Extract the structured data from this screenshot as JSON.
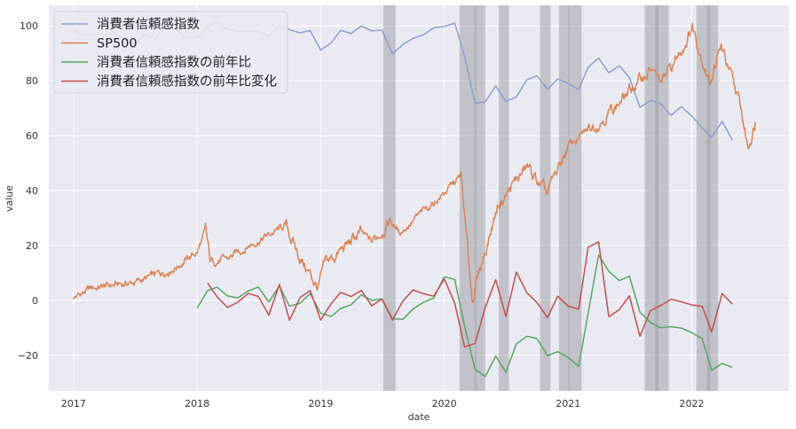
{
  "chart_data": {
    "type": "line",
    "xlabel": "date",
    "ylabel": "value",
    "xlim": [
      "2016-10-20",
      "2022-10-15"
    ],
    "ylim": [
      -33,
      107.5
    ],
    "x_ticks": [
      "2017",
      "2018",
      "2019",
      "2020",
      "2021",
      "2022"
    ],
    "y_ticks": [
      -20,
      0,
      20,
      40,
      60,
      80,
      100
    ],
    "grid": true,
    "legend_position": "top-left",
    "colors": {
      "background": "#eaeaf2",
      "grid": "#ffffff",
      "shade": "#a0a0a8"
    },
    "shaded_regions": [
      [
        "2019-07-05",
        "2019-08-10"
      ],
      [
        "2020-02-15",
        "2020-04-05"
      ],
      [
        "2020-04-01",
        "2020-05-01"
      ],
      [
        "2020-06-10",
        "2020-07-10"
      ],
      [
        "2020-10-10",
        "2020-11-10"
      ],
      [
        "2020-12-05",
        "2021-01-05"
      ],
      [
        "2021-01-01",
        "2021-02-10"
      ],
      [
        "2021-08-15",
        "2021-09-25"
      ],
      [
        "2021-09-15",
        "2021-10-25"
      ],
      [
        "2022-01-15",
        "2022-02-25"
      ],
      [
        "2022-02-15",
        "2022-03-20"
      ]
    ],
    "series": [
      {
        "name": "消費者信頼感指数",
        "color": "#8da0cb",
        "width": 1.5,
        "points": [
          [
            "2017-01-01",
            98.5
          ],
          [
            "2017-02-01",
            96.3
          ],
          [
            "2017-03-01",
            96.9
          ],
          [
            "2017-04-01",
            97.0
          ],
          [
            "2017-05-01",
            97.1
          ],
          [
            "2017-06-01",
            95.0
          ],
          [
            "2017-07-01",
            93.4
          ],
          [
            "2017-08-01",
            96.8
          ],
          [
            "2017-09-01",
            95.1
          ],
          [
            "2017-10-01",
            100.7
          ],
          [
            "2017-11-01",
            98.5
          ],
          [
            "2017-12-01",
            95.9
          ],
          [
            "2018-01-01",
            95.7
          ],
          [
            "2018-02-01",
            99.7
          ],
          [
            "2018-03-01",
            101.4
          ],
          [
            "2018-04-01",
            98.8
          ],
          [
            "2018-05-01",
            98.0
          ],
          [
            "2018-06-01",
            98.2
          ],
          [
            "2018-07-01",
            97.9
          ],
          [
            "2018-08-01",
            96.2
          ],
          [
            "2018-09-01",
            100.1
          ],
          [
            "2018-10-01",
            98.6
          ],
          [
            "2018-11-01",
            97.5
          ],
          [
            "2018-12-01",
            98.3
          ],
          [
            "2019-01-01",
            91.2
          ],
          [
            "2019-02-01",
            93.8
          ],
          [
            "2019-03-01",
            98.4
          ],
          [
            "2019-04-01",
            97.2
          ],
          [
            "2019-05-01",
            100.0
          ],
          [
            "2019-06-01",
            98.2
          ],
          [
            "2019-07-01",
            98.4
          ],
          [
            "2019-08-01",
            89.8
          ],
          [
            "2019-09-01",
            93.2
          ],
          [
            "2019-10-01",
            95.5
          ],
          [
            "2019-11-01",
            96.8
          ],
          [
            "2019-12-01",
            99.3
          ],
          [
            "2020-01-01",
            99.8
          ],
          [
            "2020-02-01",
            101.0
          ],
          [
            "2020-03-01",
            89.1
          ],
          [
            "2020-04-01",
            71.8
          ],
          [
            "2020-05-01",
            72.3
          ],
          [
            "2020-06-01",
            78.1
          ],
          [
            "2020-07-01",
            72.5
          ],
          [
            "2020-08-01",
            74.1
          ],
          [
            "2020-09-01",
            80.4
          ],
          [
            "2020-10-01",
            81.8
          ],
          [
            "2020-11-01",
            76.9
          ],
          [
            "2020-12-01",
            80.7
          ],
          [
            "2021-01-01",
            79.0
          ],
          [
            "2021-02-01",
            76.8
          ],
          [
            "2021-03-01",
            84.9
          ],
          [
            "2021-04-01",
            88.3
          ],
          [
            "2021-05-01",
            82.9
          ],
          [
            "2021-06-01",
            85.5
          ],
          [
            "2021-07-01",
            81.2
          ],
          [
            "2021-08-01",
            70.3
          ],
          [
            "2021-09-01",
            72.8
          ],
          [
            "2021-10-01",
            71.7
          ],
          [
            "2021-11-01",
            67.4
          ],
          [
            "2021-12-01",
            70.6
          ],
          [
            "2022-01-01",
            67.2
          ],
          [
            "2022-02-01",
            62.8
          ],
          [
            "2022-03-01",
            59.4
          ],
          [
            "2022-04-01",
            65.2
          ],
          [
            "2022-05-01",
            58.4
          ]
        ]
      },
      {
        "name": "SP500",
        "color": "#dd8452",
        "width": 1.5,
        "points": [
          [
            "2017-01-01",
            1.0
          ],
          [
            "2017-03-01",
            4.5
          ],
          [
            "2017-05-01",
            5.5
          ],
          [
            "2017-07-01",
            6.5
          ],
          [
            "2017-09-01",
            9.0
          ],
          [
            "2017-11-01",
            12.5
          ],
          [
            "2018-01-01",
            17.5
          ],
          [
            "2018-01-26",
            25.0
          ],
          [
            "2018-02-08",
            14.0
          ],
          [
            "2018-04-01",
            15.0
          ],
          [
            "2018-06-01",
            20.0
          ],
          [
            "2018-09-20",
            27.0
          ],
          [
            "2018-10-25",
            17.0
          ],
          [
            "2018-12-24",
            4.5
          ],
          [
            "2019-01-15",
            13.0
          ],
          [
            "2019-04-30",
            24.5
          ],
          [
            "2019-06-01",
            21.0
          ],
          [
            "2019-07-25",
            29.5
          ],
          [
            "2019-08-20",
            24.5
          ],
          [
            "2019-10-30",
            32.0
          ],
          [
            "2019-12-31",
            39.0
          ],
          [
            "2020-02-19",
            45.0
          ],
          [
            "2020-03-23",
            0.5
          ],
          [
            "2020-06-08",
            35.0
          ],
          [
            "2020-09-02",
            48.5
          ],
          [
            "2020-10-30",
            38.0
          ],
          [
            "2020-12-31",
            56.0
          ],
          [
            "2021-03-01",
            62.0
          ],
          [
            "2021-06-01",
            72.0
          ],
          [
            "2021-09-02",
            84.5
          ],
          [
            "2021-10-05",
            79.0
          ],
          [
            "2021-12-01",
            91.0
          ],
          [
            "2022-01-03",
            100.0
          ],
          [
            "2022-02-23",
            80.0
          ],
          [
            "2022-03-29",
            92.0
          ],
          [
            "2022-05-20",
            72.5
          ],
          [
            "2022-06-16",
            56.0
          ],
          [
            "2022-07-08",
            65.0
          ]
        ]
      },
      {
        "name": "消費者信頼感指数の前年比",
        "color": "#55a868",
        "width": 1.5,
        "points": [
          [
            "2018-01-01",
            -2.8
          ],
          [
            "2018-02-01",
            3.5
          ],
          [
            "2018-03-01",
            4.8
          ],
          [
            "2018-04-01",
            1.6
          ],
          [
            "2018-05-01",
            0.9
          ],
          [
            "2018-06-01",
            3.4
          ],
          [
            "2018-07-01",
            4.8
          ],
          [
            "2018-08-01",
            -0.6
          ],
          [
            "2018-09-01",
            5.2
          ],
          [
            "2018-10-01",
            -2.1
          ],
          [
            "2018-11-01",
            -1.1
          ],
          [
            "2018-12-01",
            2.5
          ],
          [
            "2019-01-01",
            -4.7
          ],
          [
            "2019-02-01",
            -5.9
          ],
          [
            "2019-03-01",
            -3.0
          ],
          [
            "2019-04-01",
            -1.6
          ],
          [
            "2019-05-01",
            2.0
          ],
          [
            "2019-06-01",
            0.0
          ],
          [
            "2019-07-01",
            0.5
          ],
          [
            "2019-08-01",
            -6.7
          ],
          [
            "2019-09-01",
            -6.9
          ],
          [
            "2019-10-01",
            -3.1
          ],
          [
            "2019-11-01",
            -0.7
          ],
          [
            "2019-12-01",
            0.8
          ],
          [
            "2020-01-01",
            8.6
          ],
          [
            "2020-02-01",
            7.6
          ],
          [
            "2020-03-01",
            -9.4
          ],
          [
            "2020-04-01",
            -25.1
          ],
          [
            "2020-05-01",
            -27.8
          ],
          [
            "2020-06-01",
            -20.3
          ],
          [
            "2020-07-01",
            -26.2
          ],
          [
            "2020-08-01",
            -15.9
          ],
          [
            "2020-09-01",
            -13.1
          ],
          [
            "2020-10-01",
            -13.9
          ],
          [
            "2020-11-01",
            -20.2
          ],
          [
            "2020-12-01",
            -18.7
          ],
          [
            "2021-01-01",
            -20.8
          ],
          [
            "2021-02-01",
            -24.0
          ],
          [
            "2021-03-01",
            -4.7
          ],
          [
            "2021-04-01",
            16.6
          ],
          [
            "2021-05-01",
            10.6
          ],
          [
            "2021-06-01",
            7.2
          ],
          [
            "2021-07-01",
            8.8
          ],
          [
            "2021-08-01",
            -4.3
          ],
          [
            "2021-09-01",
            -8.1
          ],
          [
            "2021-10-01",
            -10.0
          ],
          [
            "2021-11-01",
            -9.6
          ],
          [
            "2021-12-01",
            -10.1
          ],
          [
            "2022-01-01",
            -11.8
          ],
          [
            "2022-02-01",
            -14.0
          ],
          [
            "2022-03-01",
            -25.5
          ],
          [
            "2022-04-01",
            -23.0
          ],
          [
            "2022-05-01",
            -24.4
          ]
        ]
      },
      {
        "name": "消費者信頼感指数の前年比変化",
        "color": "#c44e52",
        "width": 1.5,
        "points": [
          [
            "2018-02-01",
            6.3
          ],
          [
            "2018-03-01",
            1.3
          ],
          [
            "2018-04-01",
            -2.6
          ],
          [
            "2018-05-01",
            -0.7
          ],
          [
            "2018-06-01",
            2.5
          ],
          [
            "2018-07-01",
            1.4
          ],
          [
            "2018-08-01",
            -5.4
          ],
          [
            "2018-09-01",
            5.8
          ],
          [
            "2018-10-01",
            -7.3
          ],
          [
            "2018-11-01",
            1.0
          ],
          [
            "2018-12-01",
            3.6
          ],
          [
            "2019-01-01",
            -7.2
          ],
          [
            "2019-02-01",
            -1.2
          ],
          [
            "2019-03-01",
            2.9
          ],
          [
            "2019-04-01",
            1.4
          ],
          [
            "2019-05-01",
            3.6
          ],
          [
            "2019-06-01",
            -2.0
          ],
          [
            "2019-07-01",
            0.5
          ],
          [
            "2019-08-01",
            -7.2
          ],
          [
            "2019-09-01",
            -0.2
          ],
          [
            "2019-10-01",
            3.8
          ],
          [
            "2019-11-01",
            2.4
          ],
          [
            "2019-12-01",
            1.5
          ],
          [
            "2020-01-01",
            7.8
          ],
          [
            "2020-02-01",
            -1.0
          ],
          [
            "2020-03-01",
            -17.0
          ],
          [
            "2020-04-01",
            -15.7
          ],
          [
            "2020-05-01",
            -2.7
          ],
          [
            "2020-06-01",
            7.5
          ],
          [
            "2020-07-01",
            -5.9
          ],
          [
            "2020-08-01",
            10.3
          ],
          [
            "2020-09-01",
            2.8
          ],
          [
            "2020-10-01",
            -0.8
          ],
          [
            "2020-11-01",
            -6.3
          ],
          [
            "2020-12-01",
            1.5
          ],
          [
            "2021-01-01",
            -2.1
          ],
          [
            "2021-02-01",
            -3.2
          ],
          [
            "2021-03-01",
            19.3
          ],
          [
            "2021-04-01",
            21.3
          ],
          [
            "2021-05-01",
            -6.0
          ],
          [
            "2021-06-01",
            -3.4
          ],
          [
            "2021-07-01",
            1.6
          ],
          [
            "2021-08-01",
            -13.1
          ],
          [
            "2021-09-01",
            -3.8
          ],
          [
            "2021-10-01",
            -1.9
          ],
          [
            "2021-11-01",
            0.4
          ],
          [
            "2021-12-01",
            -0.5
          ],
          [
            "2022-01-01",
            -1.7
          ],
          [
            "2022-02-01",
            -2.2
          ],
          [
            "2022-03-01",
            -11.5
          ],
          [
            "2022-04-01",
            2.5
          ],
          [
            "2022-05-01",
            -1.4
          ]
        ]
      }
    ]
  }
}
